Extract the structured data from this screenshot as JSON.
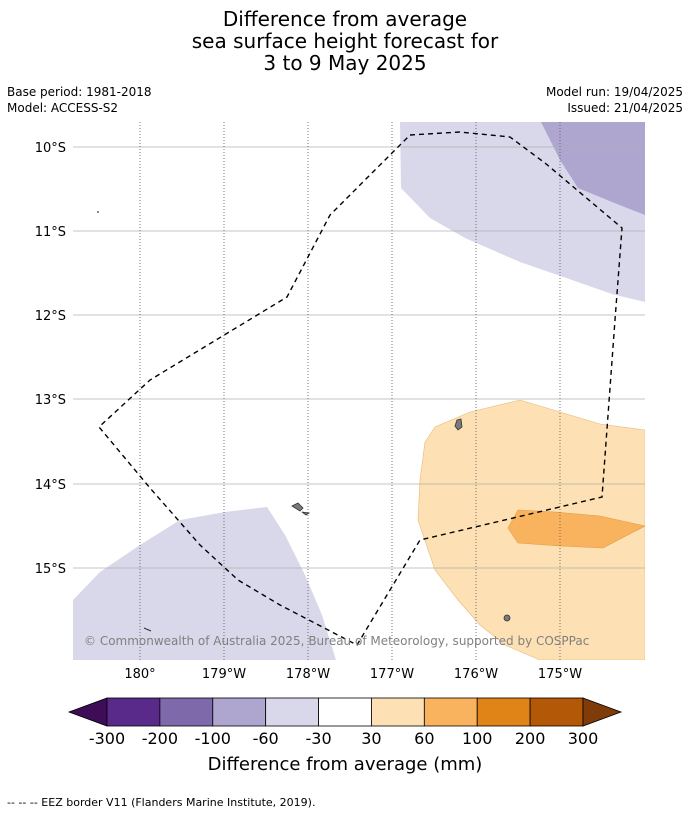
{
  "title": {
    "line1": "Difference from average",
    "line2": "sea surface height forecast for",
    "line3": "3 to 9 May 2025"
  },
  "meta": {
    "base_period": "Base period: 1981-2018",
    "model": "Model: ACCESS-S2",
    "model_run": "Model run: 19/04/2025",
    "issued": "Issued: 21/04/2025"
  },
  "map": {
    "lat_labels": [
      "10°S",
      "11°S",
      "12°S",
      "13°S",
      "14°S",
      "15°S"
    ],
    "lon_labels": [
      "180°",
      "179°W",
      "178°W",
      "177°W",
      "176°W",
      "175°W"
    ],
    "copyright": "© Commonwealth of Australia 2025, Bureau of Meteorology, supported by COSPPac"
  },
  "colorbar": {
    "ticks": [
      "-300",
      "-200",
      "-100",
      "-60",
      "-30",
      "30",
      "60",
      "100",
      "200",
      "300"
    ],
    "colors": [
      "#5a2a8a",
      "#7e6aab",
      "#aea6cf",
      "#d8d8ea",
      "#ffffff",
      "#fde0b3",
      "#f9b35e",
      "#e08417",
      "#b35806"
    ],
    "under_color": "#3f0c57",
    "over_color": "#7f3b08",
    "label": "Difference from average (mm)"
  },
  "footer": {
    "text": "--  --  -- EEZ border V11 (Flanders Marine Institute, 2019)."
  }
}
